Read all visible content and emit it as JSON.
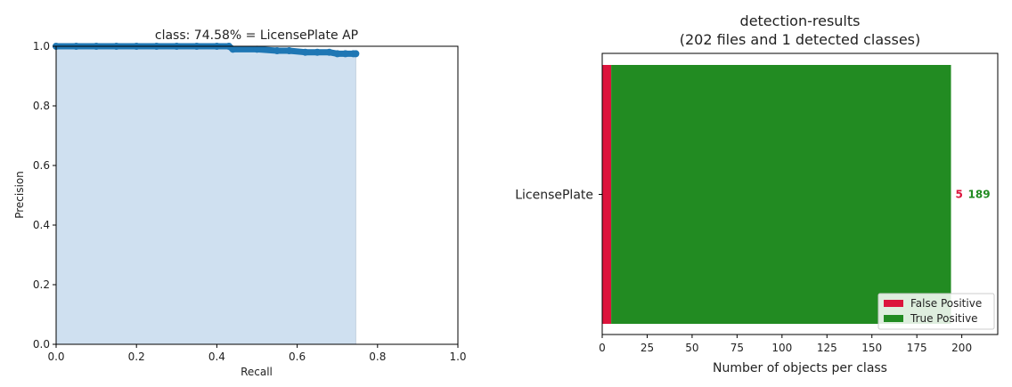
{
  "chart_data": [
    {
      "type": "area",
      "title": "class: 74.58% = LicensePlate AP",
      "xlabel": "Recall",
      "ylabel": "Precision",
      "xlim": [
        0.0,
        1.0
      ],
      "ylim": [
        0.0,
        1.0
      ],
      "xticks": [
        "0.0",
        "0.2",
        "0.4",
        "0.6",
        "0.8",
        "1.0"
      ],
      "yticks": [
        "0.0",
        "0.2",
        "0.4",
        "0.6",
        "0.8",
        "1.0"
      ],
      "grid": false,
      "fill_color": "#cfe0f0",
      "line_color": "#1f77b4",
      "x": [
        0.0,
        0.05,
        0.1,
        0.15,
        0.2,
        0.25,
        0.3,
        0.35,
        0.4,
        0.43,
        0.44,
        0.5,
        0.55,
        0.58,
        0.62,
        0.65,
        0.68,
        0.7,
        0.72,
        0.74,
        0.7458
      ],
      "y": [
        1.0,
        1.0,
        1.0,
        1.0,
        1.0,
        1.0,
        1.0,
        1.0,
        1.0,
        1.0,
        0.99,
        0.99,
        0.985,
        0.985,
        0.98,
        0.98,
        0.98,
        0.975,
        0.975,
        0.975,
        0.975
      ]
    },
    {
      "type": "bar",
      "orientation": "horizontal",
      "stacked": true,
      "title": "detection-results",
      "subtitle": "(202 files and 1 detected classes)",
      "xlabel": "Number of objects per class",
      "ylabel": "",
      "xlim": [
        0,
        220
      ],
      "xticks": [
        "0",
        "25",
        "50",
        "75",
        "100",
        "125",
        "150",
        "175",
        "200"
      ],
      "categories": [
        "LicensePlate"
      ],
      "series": [
        {
          "name": "False Positive",
          "color": "#dc143c",
          "values": [
            5
          ]
        },
        {
          "name": "True Positive",
          "color": "#228b22",
          "values": [
            189
          ]
        }
      ],
      "value_labels": [
        "5",
        "189"
      ],
      "legend_position": "lower-right"
    }
  ]
}
